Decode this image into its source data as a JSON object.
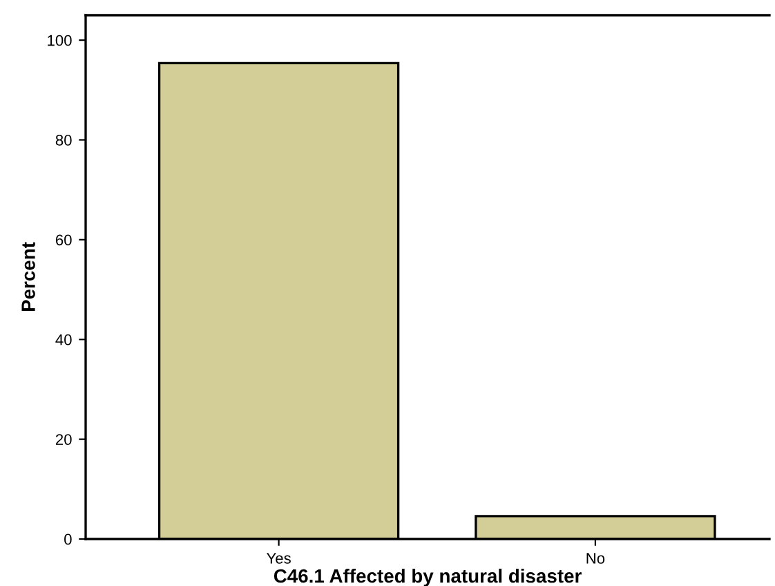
{
  "chart_data": {
    "type": "bar",
    "xlabel": "C46.1 Affected by natural disaster",
    "ylabel": "Percent",
    "categories": [
      "Yes",
      "No"
    ],
    "values": [
      95.4,
      4.6
    ],
    "color": "#d3cd97",
    "ylim": [
      0,
      105
    ],
    "yticks": [
      0,
      20,
      40,
      60,
      80,
      100
    ],
    "grid": false,
    "legend": false
  }
}
